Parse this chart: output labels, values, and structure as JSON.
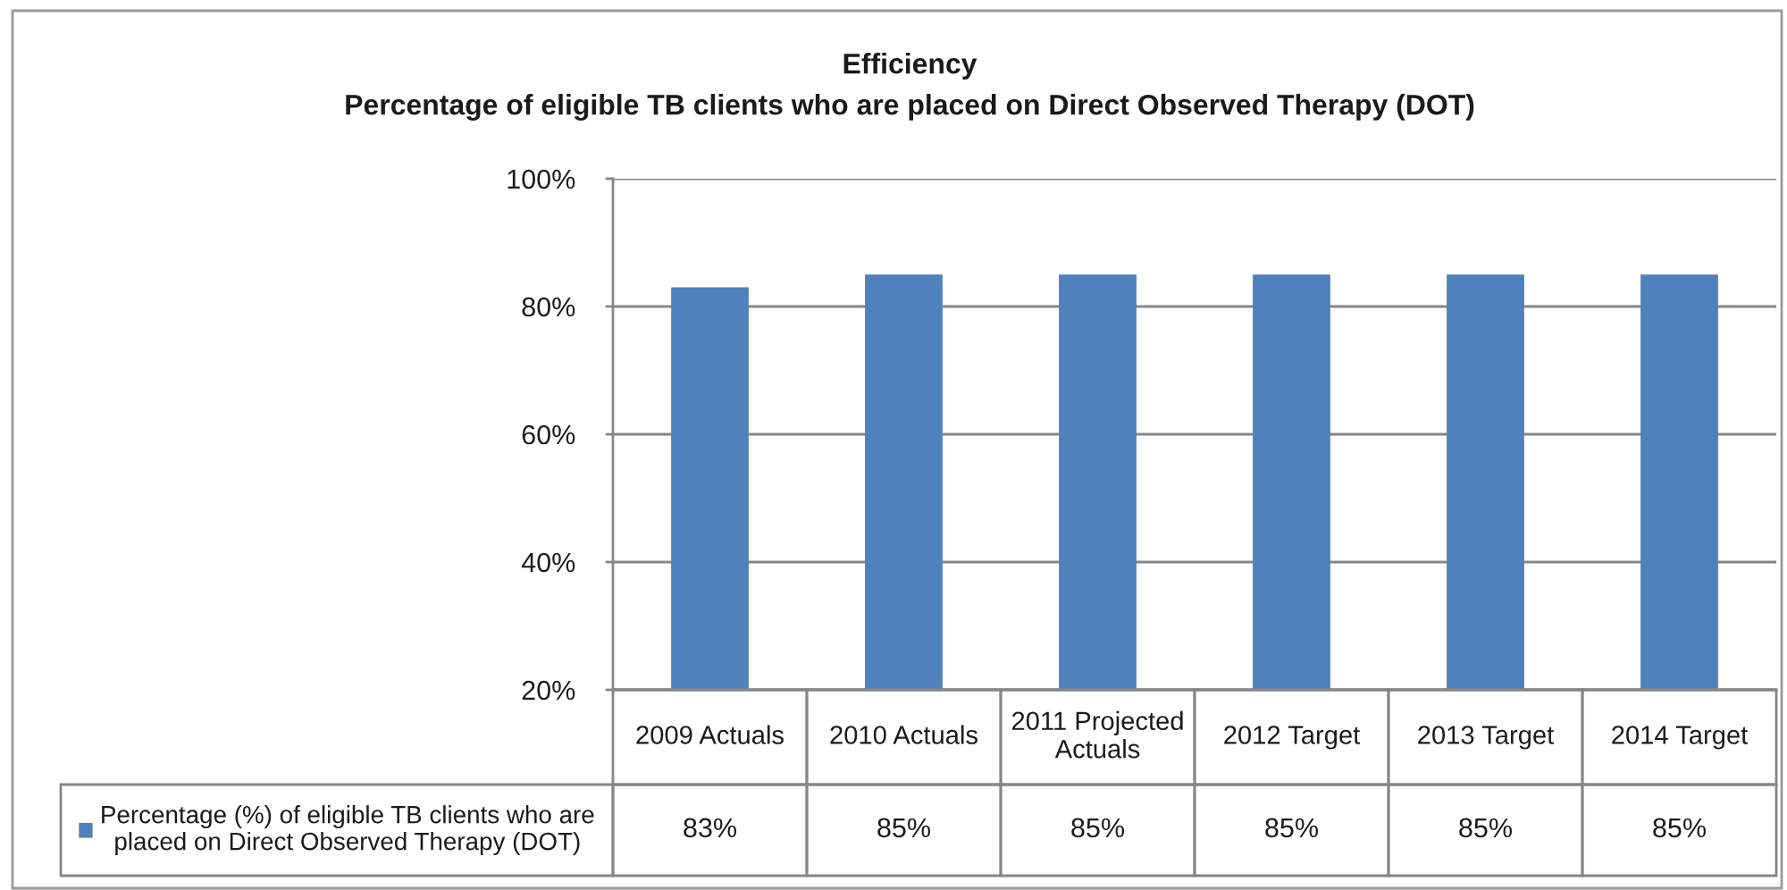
{
  "chart_data": {
    "type": "bar",
    "title": "Efficiency",
    "subtitle": "Percentage of eligible TB clients who are placed on Direct Observed Therapy (DOT)",
    "categories": [
      "2009 Actuals",
      "2010 Actuals",
      "2011 Projected Actuals",
      "2012 Target",
      "2013 Target",
      "2014 Target"
    ],
    "series": [
      {
        "name": "Percentage (%) of eligible TB clients who are placed on Direct Observed Therapy (DOT)",
        "color": "#4f81bd",
        "values": [
          83,
          85,
          85,
          85,
          85,
          85
        ],
        "value_labels": [
          "83%",
          "85%",
          "85%",
          "85%",
          "85%",
          "85%"
        ]
      }
    ],
    "ylim": [
      20,
      100
    ],
    "yticks": [
      {
        "value": 20,
        "label": "20%"
      },
      {
        "value": 40,
        "label": "40%"
      },
      {
        "value": 60,
        "label": "60%"
      },
      {
        "value": 80,
        "label": "80%"
      },
      {
        "value": 100,
        "label": "100%"
      }
    ],
    "grid": "y",
    "legend": "bottom"
  }
}
